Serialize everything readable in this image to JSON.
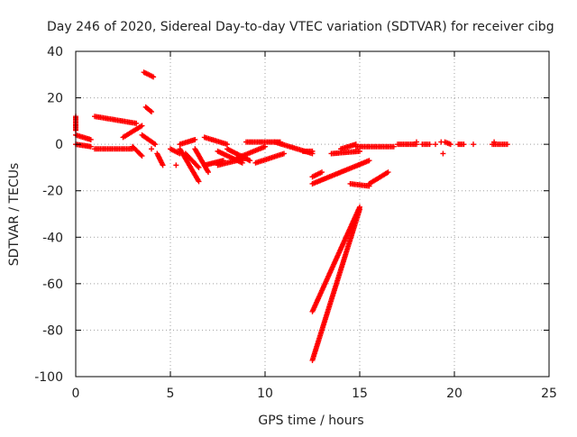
{
  "chart_data": {
    "type": "scatter",
    "title": "Day 246 of 2020, Sidereal Day-to-day VTEC variation (SDTVAR) for receiver cibg",
    "xlabel": "GPS time / hours",
    "ylabel": "SDTVAR / TECUs",
    "xlim": [
      0,
      25
    ],
    "ylim": [
      -100,
      40
    ],
    "xticks": [
      "0",
      "5",
      "10",
      "15",
      "20",
      "25"
    ],
    "yticks": [
      "40",
      "20",
      "0",
      "-20",
      "-40",
      "-60",
      "-80",
      "-100"
    ],
    "grid": true,
    "marker": "plus",
    "color": "#ff0000",
    "segments": [
      {
        "x1": 0.0,
        "y1": 4,
        "x2": 0.8,
        "y2": 2
      },
      {
        "x1": 0.0,
        "y1": 0,
        "x2": 0.8,
        "y2": -1
      },
      {
        "x1": 0.0,
        "y1": 12,
        "x2": 0.0,
        "y2": 6
      },
      {
        "x1": 1.0,
        "y1": 12,
        "x2": 3.2,
        "y2": 9
      },
      {
        "x1": 1.0,
        "y1": -2,
        "x2": 3.0,
        "y2": -2
      },
      {
        "x1": 2.5,
        "y1": 3,
        "x2": 3.5,
        "y2": 8
      },
      {
        "x1": 3.0,
        "y1": -1,
        "x2": 3.5,
        "y2": -5
      },
      {
        "x1": 3.6,
        "y1": 31,
        "x2": 4.1,
        "y2": 29
      },
      {
        "x1": 3.7,
        "y1": 16,
        "x2": 4.0,
        "y2": 14
      },
      {
        "x1": 3.5,
        "y1": 4,
        "x2": 4.2,
        "y2": 0
      },
      {
        "x1": 4.3,
        "y1": -4,
        "x2": 4.6,
        "y2": -9
      },
      {
        "x1": 5.0,
        "y1": -2,
        "x2": 5.5,
        "y2": -4
      },
      {
        "x1": 5.5,
        "y1": 0,
        "x2": 6.3,
        "y2": 2
      },
      {
        "x1": 5.5,
        "y1": -2,
        "x2": 6.5,
        "y2": -16
      },
      {
        "x1": 5.8,
        "y1": -4,
        "x2": 6.5,
        "y2": -10
      },
      {
        "x1": 6.3,
        "y1": -2,
        "x2": 7.0,
        "y2": -12
      },
      {
        "x1": 6.8,
        "y1": 3,
        "x2": 8.0,
        "y2": 0
      },
      {
        "x1": 6.8,
        "y1": -9,
        "x2": 7.8,
        "y2": -7
      },
      {
        "x1": 7.5,
        "y1": -3,
        "x2": 8.8,
        "y2": -8
      },
      {
        "x1": 7.5,
        "y1": -9,
        "x2": 9.0,
        "y2": -6
      },
      {
        "x1": 8.0,
        "y1": -2,
        "x2": 9.2,
        "y2": -7
      },
      {
        "x1": 8.5,
        "y1": -6,
        "x2": 10.0,
        "y2": -1
      },
      {
        "x1": 9.5,
        "y1": -8,
        "x2": 11.0,
        "y2": -4
      },
      {
        "x1": 9.0,
        "y1": 1,
        "x2": 10.8,
        "y2": 1
      },
      {
        "x1": 10.5,
        "y1": 1,
        "x2": 12.5,
        "y2": -4
      },
      {
        "x1": 12.0,
        "y1": -3,
        "x2": 12.5,
        "y2": -3
      },
      {
        "x1": 12.5,
        "y1": -14,
        "x2": 13.0,
        "y2": -12
      },
      {
        "x1": 12.5,
        "y1": -17,
        "x2": 15.5,
        "y2": -7
      },
      {
        "x1": 13.5,
        "y1": -4,
        "x2": 15.0,
        "y2": -3
      },
      {
        "x1": 14.0,
        "y1": -2,
        "x2": 14.8,
        "y2": 0
      },
      {
        "x1": 14.8,
        "y1": -1,
        "x2": 16.8,
        "y2": -1
      },
      {
        "x1": 14.5,
        "y1": -17,
        "x2": 15.5,
        "y2": -18
      },
      {
        "x1": 15.5,
        "y1": -17,
        "x2": 16.5,
        "y2": -12
      },
      {
        "x1": 12.5,
        "y1": -72,
        "x2": 15.0,
        "y2": -27
      },
      {
        "x1": 12.5,
        "y1": -93,
        "x2": 15.0,
        "y2": -28
      },
      {
        "x1": 17.0,
        "y1": 0,
        "x2": 18.0,
        "y2": 0
      },
      {
        "x1": 18.3,
        "y1": 0,
        "x2": 18.7,
        "y2": 0
      },
      {
        "x1": 19.5,
        "y1": 1,
        "x2": 19.8,
        "y2": 0
      },
      {
        "x1": 20.2,
        "y1": 0,
        "x2": 20.5,
        "y2": 0
      },
      {
        "x1": 22.0,
        "y1": 0,
        "x2": 22.8,
        "y2": 0
      }
    ],
    "isolated": [
      {
        "x": 0.0,
        "y": 8
      },
      {
        "x": 4.0,
        "y": -2
      },
      {
        "x": 5.3,
        "y": -9
      },
      {
        "x": 18.0,
        "y": 1
      },
      {
        "x": 19.0,
        "y": 0
      },
      {
        "x": 19.3,
        "y": 1
      },
      {
        "x": 19.4,
        "y": -4
      },
      {
        "x": 21.0,
        "y": 0
      },
      {
        "x": 22.1,
        "y": 1
      }
    ]
  }
}
